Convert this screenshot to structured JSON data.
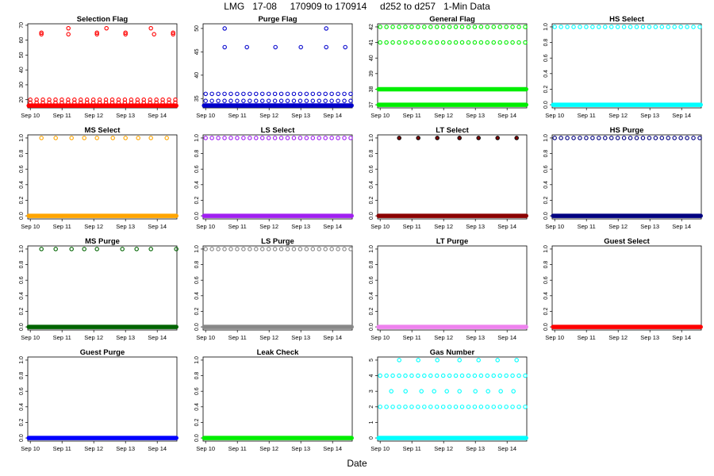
{
  "title": "LMG   17-08     170909 to 170914     d252 to d257   1-Min Data",
  "xlabel": "Date",
  "x_tick_labels": [
    "Sep 10",
    "Sep 11",
    "Sep 12",
    "Sep 13",
    "Sep 14"
  ],
  "chart_data": [
    {
      "type": "scatter",
      "title": "Selection Flag",
      "color": "#ff0000",
      "x_ticks": [
        10,
        11,
        12,
        13,
        14
      ],
      "xlim": [
        9.92,
        14.62
      ],
      "ylim": [
        14.5,
        71
      ],
      "yticks": [
        20,
        30,
        40,
        50,
        60,
        70
      ],
      "dense": [
        16
      ],
      "extra": [
        18,
        20
      ],
      "sparse": [
        {
          "y": 64,
          "x": [
            10.35,
            11.2,
            12.1,
            13.0,
            13.9,
            14.5
          ]
        },
        {
          "y": 65,
          "x": [
            10.35,
            12.1,
            13.0,
            14.5
          ]
        },
        {
          "y": 68,
          "x": [
            11.2,
            12.4,
            13.8
          ]
        }
      ],
      "extra_offset": 0.0,
      "sparse_marker": "o"
    },
    {
      "type": "scatter",
      "title": "Purge Flag",
      "color": "#0000cc",
      "x_ticks": [
        10,
        11,
        12,
        13,
        14
      ],
      "xlim": [
        9.92,
        14.62
      ],
      "ylim": [
        33,
        51
      ],
      "yticks": [
        35,
        40,
        45,
        50
      ],
      "dense": [
        33.5
      ],
      "extra": [
        34.5,
        36
      ],
      "sparse": [
        {
          "y": 46,
          "x": [
            10.6,
            11.3,
            12.2,
            13.0,
            13.8,
            14.4
          ]
        },
        {
          "y": 50,
          "x": [
            10.6,
            13.8
          ]
        }
      ],
      "extra_offset": 0.0,
      "sparse_marker": "o"
    },
    {
      "type": "scatter",
      "title": "General Flag",
      "color": "#00ee00",
      "x_ticks": [
        10,
        11,
        12,
        13,
        14
      ],
      "xlim": [
        9.92,
        14.62
      ],
      "ylim": [
        36.8,
        42.2
      ],
      "yticks": [
        37,
        38,
        39,
        40,
        41,
        42
      ],
      "dense": [
        37,
        38
      ],
      "extra": [
        41,
        42
      ],
      "sparse": [],
      "extra_offset": 0.0,
      "sparse_marker": "o"
    },
    {
      "type": "scatter",
      "title": "HS Select",
      "color": "#00ffff",
      "x_ticks": [
        10,
        11,
        12,
        13,
        14
      ],
      "xlim": [
        9.92,
        14.62
      ],
      "ylim": [
        -0.04,
        1.04
      ],
      "yticks": [
        0.0,
        0.2,
        0.4,
        0.6,
        0.8,
        1.0
      ],
      "dense": [
        0
      ],
      "extra": [
        1
      ],
      "sparse": [],
      "extra_offset": 0.0,
      "sparse_marker": "o"
    },
    {
      "type": "scatter",
      "title": "MS Select",
      "color": "#ffa500",
      "x_ticks": [
        10,
        11,
        12,
        13,
        14
      ],
      "xlim": [
        9.92,
        14.62
      ],
      "ylim": [
        -0.04,
        1.04
      ],
      "yticks": [
        0.0,
        0.2,
        0.4,
        0.6,
        0.8,
        1.0
      ],
      "dense": [
        0
      ],
      "extra": [],
      "sparse": [
        {
          "y": 1,
          "x": [
            10.35,
            10.8,
            11.3,
            11.7,
            12.1,
            12.6,
            13.0,
            13.4,
            13.8,
            14.3
          ]
        }
      ],
      "extra_offset": 0.0,
      "sparse_marker": "o"
    },
    {
      "type": "scatter",
      "title": "LS Select",
      "color": "#a020f0",
      "x_ticks": [
        10,
        11,
        12,
        13,
        14
      ],
      "xlim": [
        9.92,
        14.62
      ],
      "ylim": [
        -0.04,
        1.04
      ],
      "yticks": [
        0.0,
        0.2,
        0.4,
        0.6,
        0.8,
        1.0
      ],
      "dense": [
        0
      ],
      "extra": [
        1
      ],
      "sparse": [],
      "extra_offset": 0.0,
      "sparse_marker": "o"
    },
    {
      "type": "scatter",
      "title": "LT Select",
      "color": "#8b0000",
      "x_ticks": [
        10,
        11,
        12,
        13,
        14
      ],
      "xlim": [
        9.92,
        14.62
      ],
      "ylim": [
        -0.04,
        1.04
      ],
      "yticks": [
        0.0,
        0.2,
        0.4,
        0.6,
        0.8,
        1.0
      ],
      "dense": [
        0
      ],
      "extra": [],
      "sparse": [
        {
          "y": 1,
          "x": [
            10.6,
            11.2,
            11.8,
            12.5,
            13.1,
            13.7,
            14.3
          ]
        }
      ],
      "extra_offset": 0.0,
      "sparse_marker": "o"
    },
    {
      "type": "scatter",
      "title": "HS Purge",
      "color": "#000080",
      "x_ticks": [
        10,
        11,
        12,
        13,
        14
      ],
      "xlim": [
        9.92,
        14.62
      ],
      "ylim": [
        -0.04,
        1.04
      ],
      "yticks": [
        0.0,
        0.2,
        0.4,
        0.6,
        0.8,
        1.0
      ],
      "dense": [
        0
      ],
      "extra": [
        1
      ],
      "sparse": [],
      "extra_offset": 0.0,
      "sparse_marker": "o"
    },
    {
      "type": "scatter",
      "title": "MS Purge",
      "color": "#006400",
      "x_ticks": [
        10,
        11,
        12,
        13,
        14
      ],
      "xlim": [
        9.92,
        14.62
      ],
      "ylim": [
        -0.04,
        1.04
      ],
      "yticks": [
        0.0,
        0.2,
        0.4,
        0.6,
        0.8,
        1.0
      ],
      "dense": [
        0
      ],
      "extra": [],
      "sparse": [
        {
          "y": 1,
          "x": [
            10.35,
            10.8,
            11.3,
            11.7,
            12.1,
            12.9,
            13.35,
            13.8,
            14.6
          ]
        }
      ],
      "extra_offset": 0.0,
      "sparse_marker": "o"
    },
    {
      "type": "scatter",
      "title": "LS Purge",
      "color": "#888888",
      "x_ticks": [
        10,
        11,
        12,
        13,
        14
      ],
      "xlim": [
        9.92,
        14.62
      ],
      "ylim": [
        -0.04,
        1.04
      ],
      "yticks": [
        0.0,
        0.2,
        0.4,
        0.6,
        0.8,
        1.0
      ],
      "dense": [
        0
      ],
      "extra": [
        1
      ],
      "sparse": [],
      "extra_offset": 0.0,
      "sparse_marker": "o"
    },
    {
      "type": "scatter",
      "title": "LT Purge",
      "color": "#ee82ee",
      "x_ticks": [
        10,
        11,
        12,
        13,
        14
      ],
      "xlim": [
        9.92,
        14.62
      ],
      "ylim": [
        -0.04,
        1.04
      ],
      "yticks": [
        0.0,
        0.2,
        0.4,
        0.6,
        0.8,
        1.0
      ],
      "dense": [
        0
      ],
      "extra": [],
      "sparse": [],
      "extra_offset": 0.0,
      "sparse_marker": "o"
    },
    {
      "type": "scatter",
      "title": "Guest Select",
      "color": "#ff0000",
      "x_ticks": [
        10,
        11,
        12,
        13,
        14
      ],
      "xlim": [
        9.92,
        14.62
      ],
      "ylim": [
        -0.04,
        1.04
      ],
      "yticks": [
        0.0,
        0.2,
        0.4,
        0.6,
        0.8,
        1.0
      ],
      "dense": [
        0
      ],
      "extra": [],
      "sparse": [],
      "extra_offset": 0.0,
      "sparse_marker": "o"
    },
    {
      "type": "scatter",
      "title": "Guest Purge",
      "color": "#0000ff",
      "x_ticks": [
        10,
        11,
        12,
        13,
        14
      ],
      "xlim": [
        9.92,
        14.62
      ],
      "ylim": [
        -0.04,
        1.04
      ],
      "yticks": [
        0.0,
        0.2,
        0.4,
        0.6,
        0.8,
        1.0
      ],
      "dense": [
        0
      ],
      "extra": [],
      "sparse": [],
      "extra_offset": 0.0,
      "sparse_marker": "o"
    },
    {
      "type": "scatter",
      "title": "Leak Check",
      "color": "#00ee00",
      "x_ticks": [
        10,
        11,
        12,
        13,
        14
      ],
      "xlim": [
        9.92,
        14.62
      ],
      "ylim": [
        -0.04,
        1.04
      ],
      "yticks": [
        0.0,
        0.2,
        0.4,
        0.6,
        0.8,
        1.0
      ],
      "dense": [
        0
      ],
      "extra": [],
      "sparse": [],
      "extra_offset": 0.0,
      "sparse_marker": "o"
    },
    {
      "type": "scatter",
      "title": "Gas Number",
      "color": "#00ffff",
      "x_ticks": [
        10,
        11,
        12,
        13,
        14
      ],
      "xlim": [
        9.92,
        14.62
      ],
      "ylim": [
        -0.2,
        5.2
      ],
      "yticks": [
        0,
        1,
        2,
        3,
        4,
        5
      ],
      "dense": [
        0
      ],
      "extra": [
        2,
        4
      ],
      "sparse": [
        {
          "y": 5,
          "x": [
            10.6,
            11.2,
            11.8,
            12.5,
            13.1,
            13.7,
            14.3
          ]
        },
        {
          "y": 3,
          "x": [
            10.35,
            10.8,
            11.3,
            11.7,
            12.1,
            12.5,
            13.0,
            13.4,
            13.8,
            14.2
          ]
        }
      ],
      "extra_offset": 0.0,
      "sparse_marker": "o"
    }
  ]
}
